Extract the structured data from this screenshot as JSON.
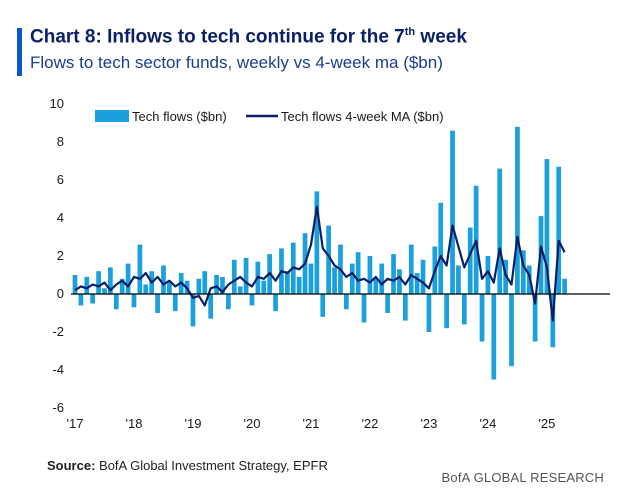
{
  "header": {
    "title_main": "Chart 8: Inflows to tech continue for the 7",
    "title_sup": "th",
    "title_end": " week",
    "subtitle": "Flows to tech sector funds, weekly vs 4-week ma ($bn)"
  },
  "footer": {
    "source_label": "Source:",
    "source_text": " BofA Global Investment Strategy, EPFR",
    "brand": "BofA GLOBAL RESEARCH"
  },
  "colors": {
    "bars": "#1aa0dd",
    "ma_line": "#0a1f66",
    "accent": "#0a57c9",
    "axis": "#000000"
  },
  "chart_data": {
    "type": "bar",
    "title": "Chart 8: Inflows to tech continue for the 7th week",
    "subtitle": "Flows to tech sector funds, weekly vs 4-week ma ($bn)",
    "xlabel": "",
    "ylabel": "",
    "ylim": [
      -6,
      10
    ],
    "yticks": [
      10,
      8,
      6,
      4,
      2,
      0,
      -2,
      -4,
      -6
    ],
    "ytick_labels": [
      "10",
      "8",
      "6",
      "4",
      "2",
      "0",
      "-2",
      "-4",
      "-6"
    ],
    "xlim": [
      2017.0,
      2025.9
    ],
    "xticks": [
      2017,
      2018,
      2019,
      2020,
      2021,
      2022,
      2023,
      2024,
      2025
    ],
    "xtick_labels": [
      "'17",
      "'18",
      "'19",
      "'20",
      "'21",
      "'22",
      "'23",
      "'24",
      "'25"
    ],
    "legend": {
      "position": "top",
      "entries": [
        "Tech flows ($bn)",
        "Tech flows 4-week MA ($bn)"
      ]
    },
    "series": [
      {
        "name": "Tech flows ($bn)",
        "type": "bar",
        "x": [
          2017.0,
          2017.1,
          2017.2,
          2017.3,
          2017.4,
          2017.5,
          2017.6,
          2017.7,
          2017.8,
          2017.9,
          2018.0,
          2018.1,
          2018.2,
          2018.3,
          2018.4,
          2018.5,
          2018.6,
          2018.7,
          2018.8,
          2018.9,
          2019.0,
          2019.1,
          2019.2,
          2019.3,
          2019.4,
          2019.5,
          2019.6,
          2019.7,
          2019.8,
          2019.9,
          2020.0,
          2020.1,
          2020.2,
          2020.3,
          2020.4,
          2020.5,
          2020.6,
          2020.7,
          2020.8,
          2020.9,
          2021.0,
          2021.1,
          2021.2,
          2021.3,
          2021.4,
          2021.5,
          2021.6,
          2021.7,
          2021.8,
          2021.9,
          2022.0,
          2022.1,
          2022.2,
          2022.3,
          2022.4,
          2022.5,
          2022.6,
          2022.7,
          2022.8,
          2022.9,
          2023.0,
          2023.1,
          2023.2,
          2023.3,
          2023.4,
          2023.5,
          2023.6,
          2023.7,
          2023.8,
          2023.9,
          2024.0,
          2024.1,
          2024.2,
          2024.3,
          2024.4,
          2024.5,
          2024.6,
          2024.7,
          2024.8,
          2024.9,
          2025.0,
          2025.1,
          2025.2,
          2025.3
        ],
        "values": [
          1.0,
          -0.6,
          0.9,
          -0.5,
          1.2,
          0.3,
          1.4,
          -0.8,
          0.8,
          1.6,
          -0.7,
          2.6,
          0.5,
          1.2,
          -1.0,
          1.5,
          0.6,
          -0.9,
          1.1,
          0.7,
          -1.7,
          0.8,
          1.2,
          -1.3,
          1.0,
          0.9,
          -0.8,
          1.8,
          0.4,
          1.9,
          -0.6,
          1.7,
          0.7,
          2.1,
          -0.9,
          2.4,
          1.2,
          2.7,
          0.9,
          3.2,
          1.6,
          5.4,
          -1.2,
          3.6,
          1.4,
          2.6,
          -0.8,
          1.6,
          2.2,
          -1.5,
          2.0,
          0.8,
          1.6,
          -1.0,
          2.1,
          1.3,
          -1.4,
          2.6,
          1.1,
          1.8,
          -2.0,
          2.5,
          4.8,
          -1.8,
          8.6,
          1.5,
          -1.6,
          3.5,
          5.7,
          -2.5,
          2.0,
          -4.5,
          6.6,
          1.8,
          -3.8,
          8.8,
          2.3,
          1.5,
          -2.5,
          4.1,
          7.1,
          -2.8,
          6.7,
          0.8
        ]
      },
      {
        "name": "Tech flows 4-week MA ($bn)",
        "type": "line",
        "x": [
          2017.0,
          2017.1,
          2017.2,
          2017.3,
          2017.4,
          2017.5,
          2017.6,
          2017.7,
          2017.8,
          2017.9,
          2018.0,
          2018.1,
          2018.2,
          2018.3,
          2018.4,
          2018.5,
          2018.6,
          2018.7,
          2018.8,
          2018.9,
          2019.0,
          2019.1,
          2019.2,
          2019.3,
          2019.4,
          2019.5,
          2019.6,
          2019.7,
          2019.8,
          2019.9,
          2020.0,
          2020.1,
          2020.2,
          2020.3,
          2020.4,
          2020.5,
          2020.6,
          2020.7,
          2020.8,
          2020.9,
          2021.0,
          2021.1,
          2021.2,
          2021.3,
          2021.4,
          2021.5,
          2021.6,
          2021.7,
          2021.8,
          2021.9,
          2022.0,
          2022.1,
          2022.2,
          2022.3,
          2022.4,
          2022.5,
          2022.6,
          2022.7,
          2022.8,
          2022.9,
          2023.0,
          2023.1,
          2023.2,
          2023.3,
          2023.4,
          2023.5,
          2023.6,
          2023.7,
          2023.8,
          2023.9,
          2024.0,
          2024.1,
          2024.2,
          2024.3,
          2024.4,
          2024.5,
          2024.6,
          2024.7,
          2024.8,
          2024.9,
          2025.0,
          2025.1,
          2025.2,
          2025.3
        ],
        "values": [
          0.2,
          0.4,
          0.3,
          0.5,
          0.4,
          0.6,
          0.2,
          0.5,
          0.7,
          0.4,
          0.9,
          0.8,
          1.1,
          0.6,
          0.9,
          0.5,
          0.7,
          0.4,
          0.6,
          0.3,
          -0.2,
          -0.1,
          -0.6,
          0.3,
          0.4,
          0.1,
          0.5,
          0.7,
          0.9,
          0.6,
          0.4,
          0.9,
          0.8,
          1.1,
          0.7,
          1.2,
          1.1,
          1.4,
          1.3,
          1.6,
          2.6,
          4.6,
          2.4,
          2.0,
          1.5,
          1.3,
          0.9,
          1.1,
          0.7,
          0.8,
          0.6,
          0.9,
          0.5,
          0.8,
          0.7,
          0.9,
          0.5,
          1.0,
          0.8,
          0.6,
          0.3,
          1.2,
          2.0,
          1.5,
          3.6,
          2.5,
          1.4,
          2.1,
          2.8,
          0.8,
          1.2,
          0.6,
          2.4,
          1.0,
          0.5,
          3.0,
          1.5,
          1.0,
          -0.5,
          2.5,
          1.4,
          -1.4,
          2.8,
          2.2
        ]
      }
    ]
  }
}
